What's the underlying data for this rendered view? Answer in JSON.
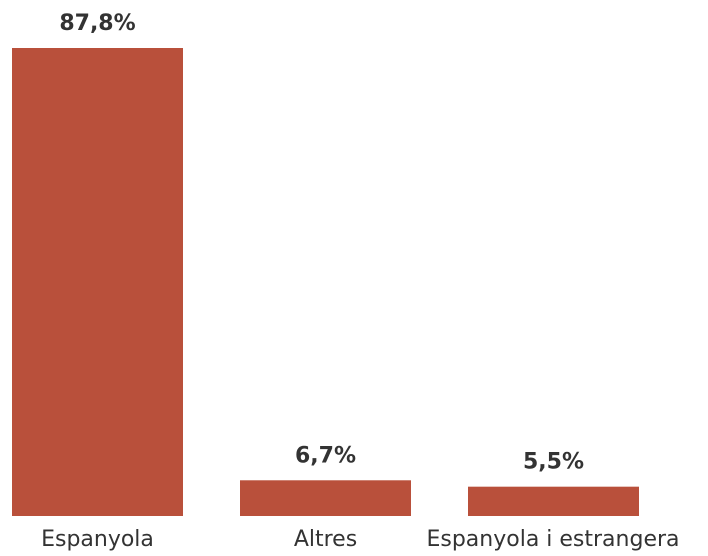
{
  "chart_data": {
    "type": "bar",
    "categories": [
      "Espanyola",
      "Altres",
      "Espanyola i estrangera"
    ],
    "values": [
      87.8,
      6.7,
      5.5
    ],
    "value_labels": [
      "87,8%",
      "6,7%",
      "5,5%"
    ],
    "color": "#b9503b"
  }
}
